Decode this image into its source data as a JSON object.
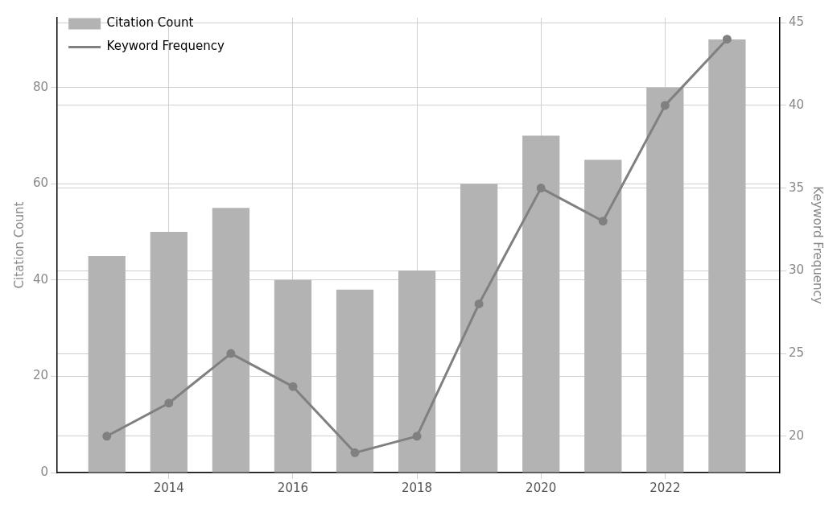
{
  "chart_data": {
    "type": "bar",
    "x": [
      2013,
      2014,
      2015,
      2016,
      2017,
      2018,
      2019,
      2020,
      2021,
      2022,
      2023
    ],
    "xlim": [
      2012.2,
      2023.85
    ],
    "xticks": [
      2014,
      2016,
      2018,
      2020,
      2022
    ],
    "ylabel": "Citation Count",
    "y2label": "Keyword Frequency",
    "ylim": [
      0,
      94.5
    ],
    "yticks": [
      0,
      20,
      40,
      60,
      80
    ],
    "y2lim": [
      17.8,
      45.3
    ],
    "y2ticks": [
      20,
      25,
      30,
      35,
      40,
      45
    ],
    "series": [
      {
        "name": "Citation Count",
        "color": "#b3b3b3",
        "values": [
          45,
          50,
          55,
          40,
          38,
          42,
          60,
          70,
          65,
          80,
          90
        ]
      },
      {
        "name": "Keyword Frequency",
        "type": "line",
        "axis": "y2",
        "color": "#808080",
        "marker": "circle",
        "values": [
          20,
          22,
          25,
          23,
          19,
          20,
          28,
          35,
          33,
          40,
          44
        ]
      }
    ],
    "grid": true,
    "legend": "top left"
  }
}
